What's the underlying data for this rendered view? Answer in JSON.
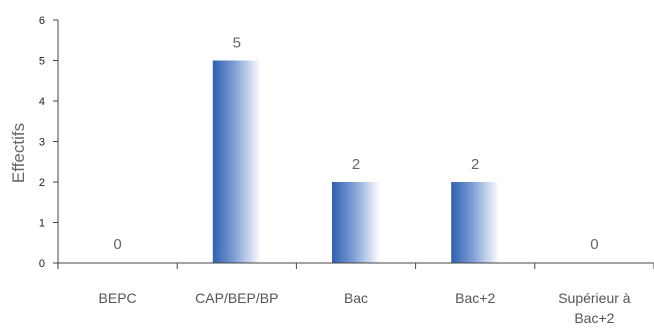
{
  "chart_data": {
    "type": "bar",
    "title": "",
    "xlabel": "",
    "ylabel": "Effectifs",
    "categories": [
      [
        "BEPC"
      ],
      [
        "CAP/BEP/BP"
      ],
      [
        "Bac"
      ],
      [
        "Bac+2"
      ],
      [
        "Supérieur à",
        "Bac+2"
      ]
    ],
    "values": [
      0,
      5,
      2,
      2,
      0
    ],
    "data_labels": [
      "0",
      "5",
      "2",
      "2",
      "0"
    ],
    "ylim": [
      0,
      6
    ],
    "yticks": [
      "0",
      "1",
      "2",
      "3",
      "4",
      "5",
      "6"
    ],
    "grid": false,
    "legend": "none",
    "colors": {
      "bar_dark": "#2f5fb0",
      "bar_mid": "#7f9fd6",
      "bar_light": "#ffffff",
      "axis": "#444444"
    }
  }
}
